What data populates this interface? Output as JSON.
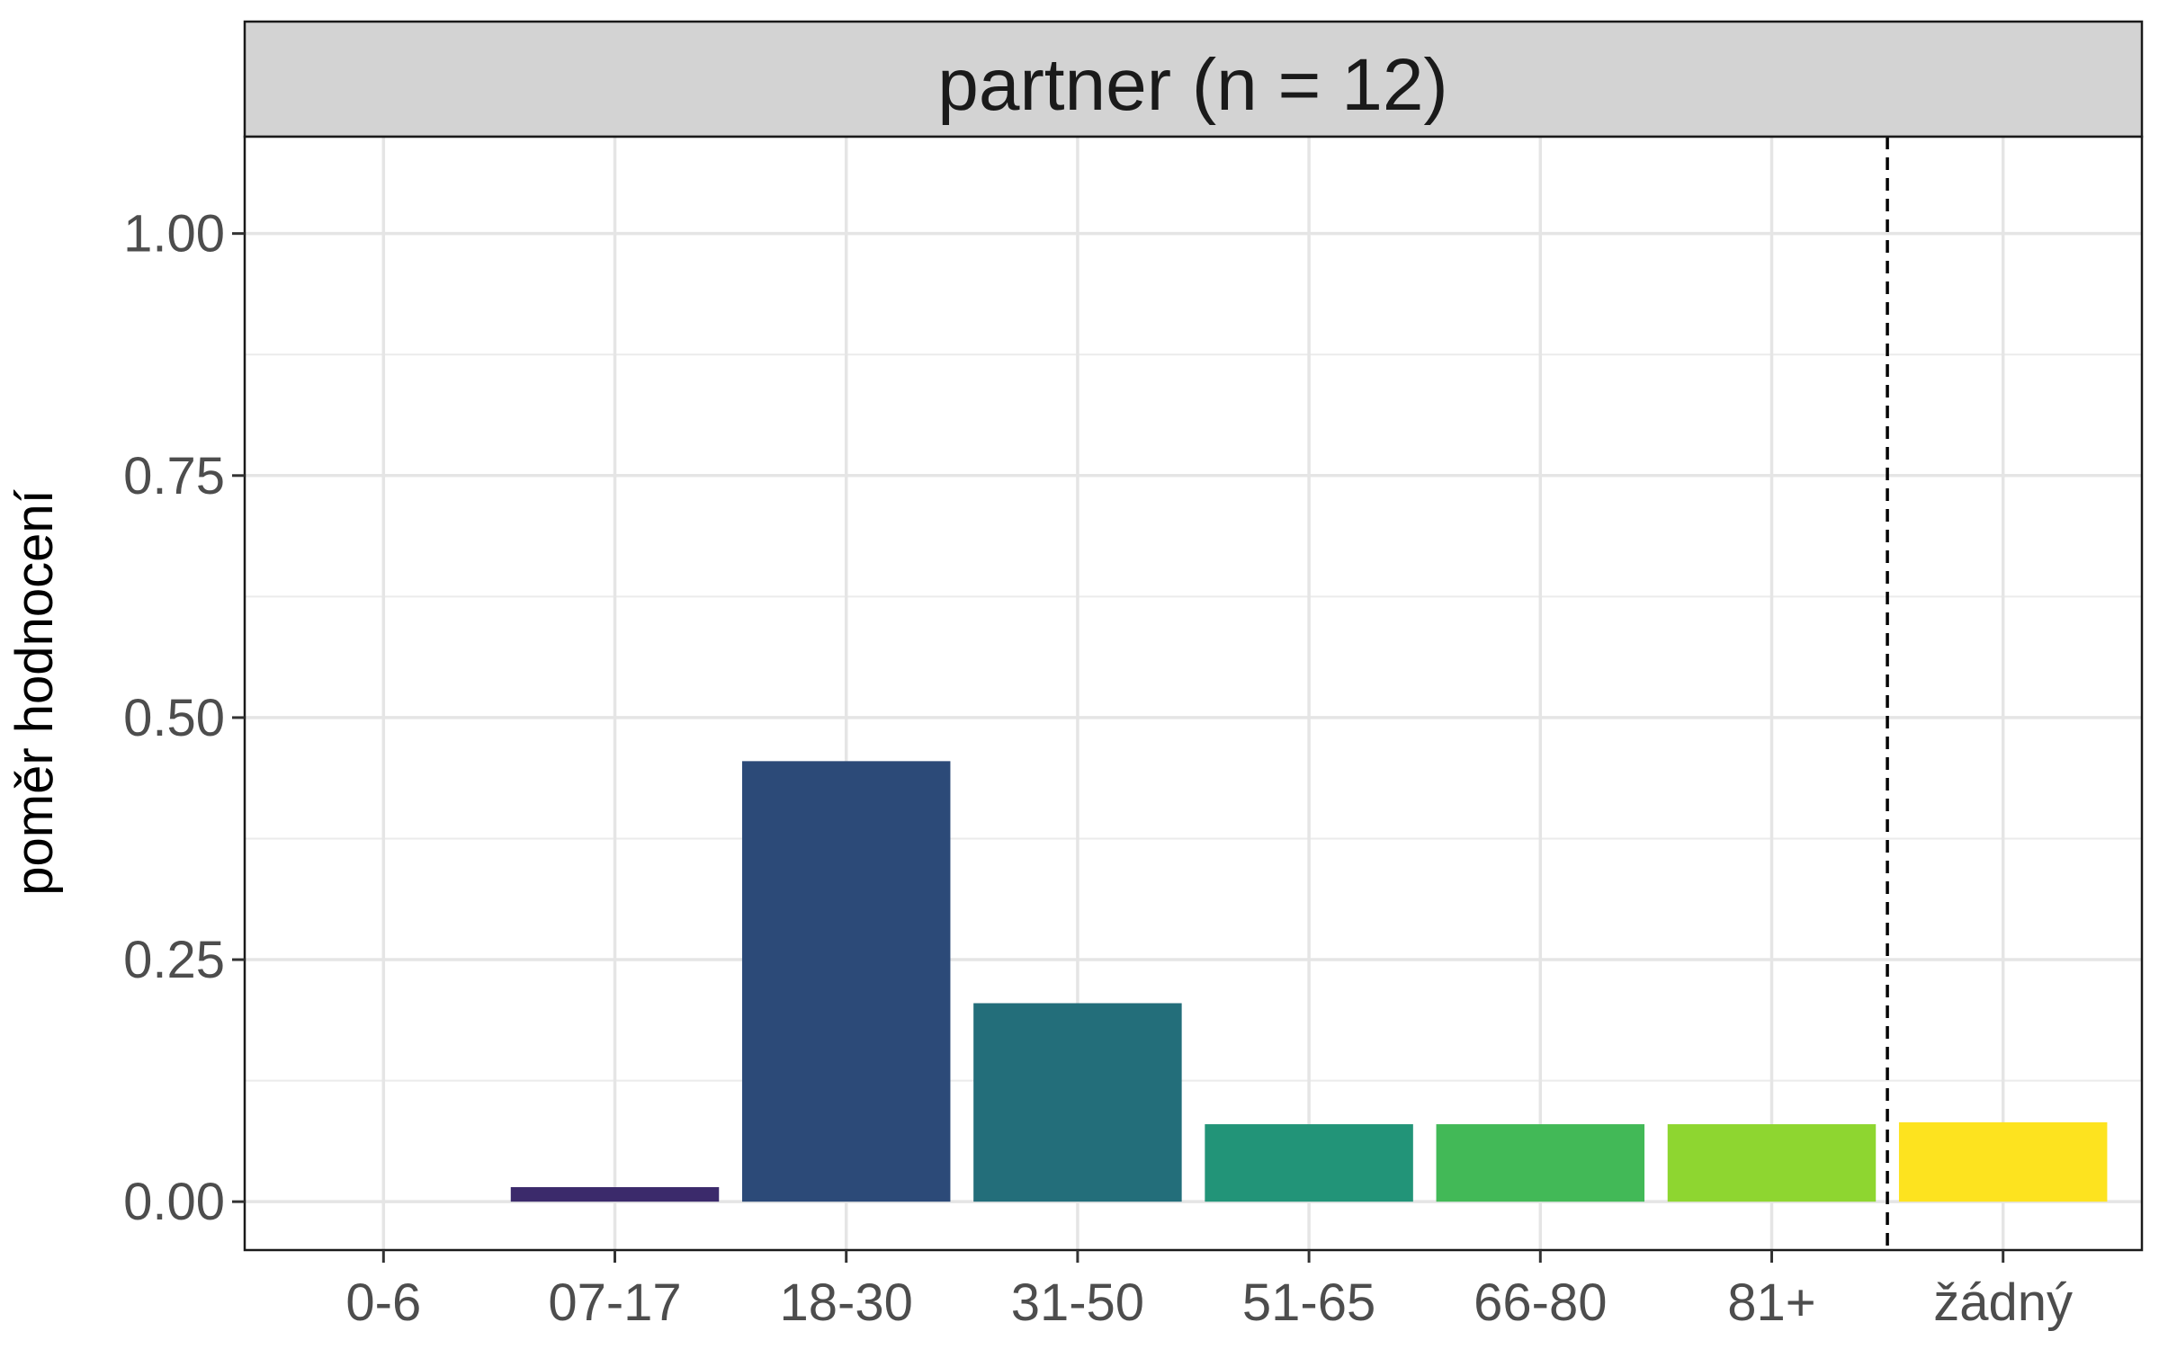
{
  "chart_data": {
    "type": "bar",
    "facet_title": "partner (n = 12)",
    "xlabel": "",
    "ylabel": "poměr hodnocení",
    "categories": [
      "0-6",
      "07-17",
      "18-30",
      "31-50",
      "51-65",
      "66-80",
      "81+",
      "žádný"
    ],
    "values": [
      0.0,
      0.015,
      0.455,
      0.205,
      0.08,
      0.08,
      0.08,
      0.082
    ],
    "colors": [
      "#440154",
      "#3b2a6b",
      "#2c4a78",
      "#236e7a",
      "#229478",
      "#42b957",
      "#8ed630",
      "#fde31f"
    ],
    "ylim": [
      -0.05,
      1.1
    ],
    "yticks": [
      0.0,
      0.25,
      0.5,
      0.75,
      1.0
    ],
    "ytick_labels": [
      "0.00",
      "0.25",
      "0.50",
      "0.75",
      "1.00"
    ],
    "grid": true,
    "separator_line": {
      "position": "between 81+ and žádný",
      "style": "dashed"
    }
  }
}
